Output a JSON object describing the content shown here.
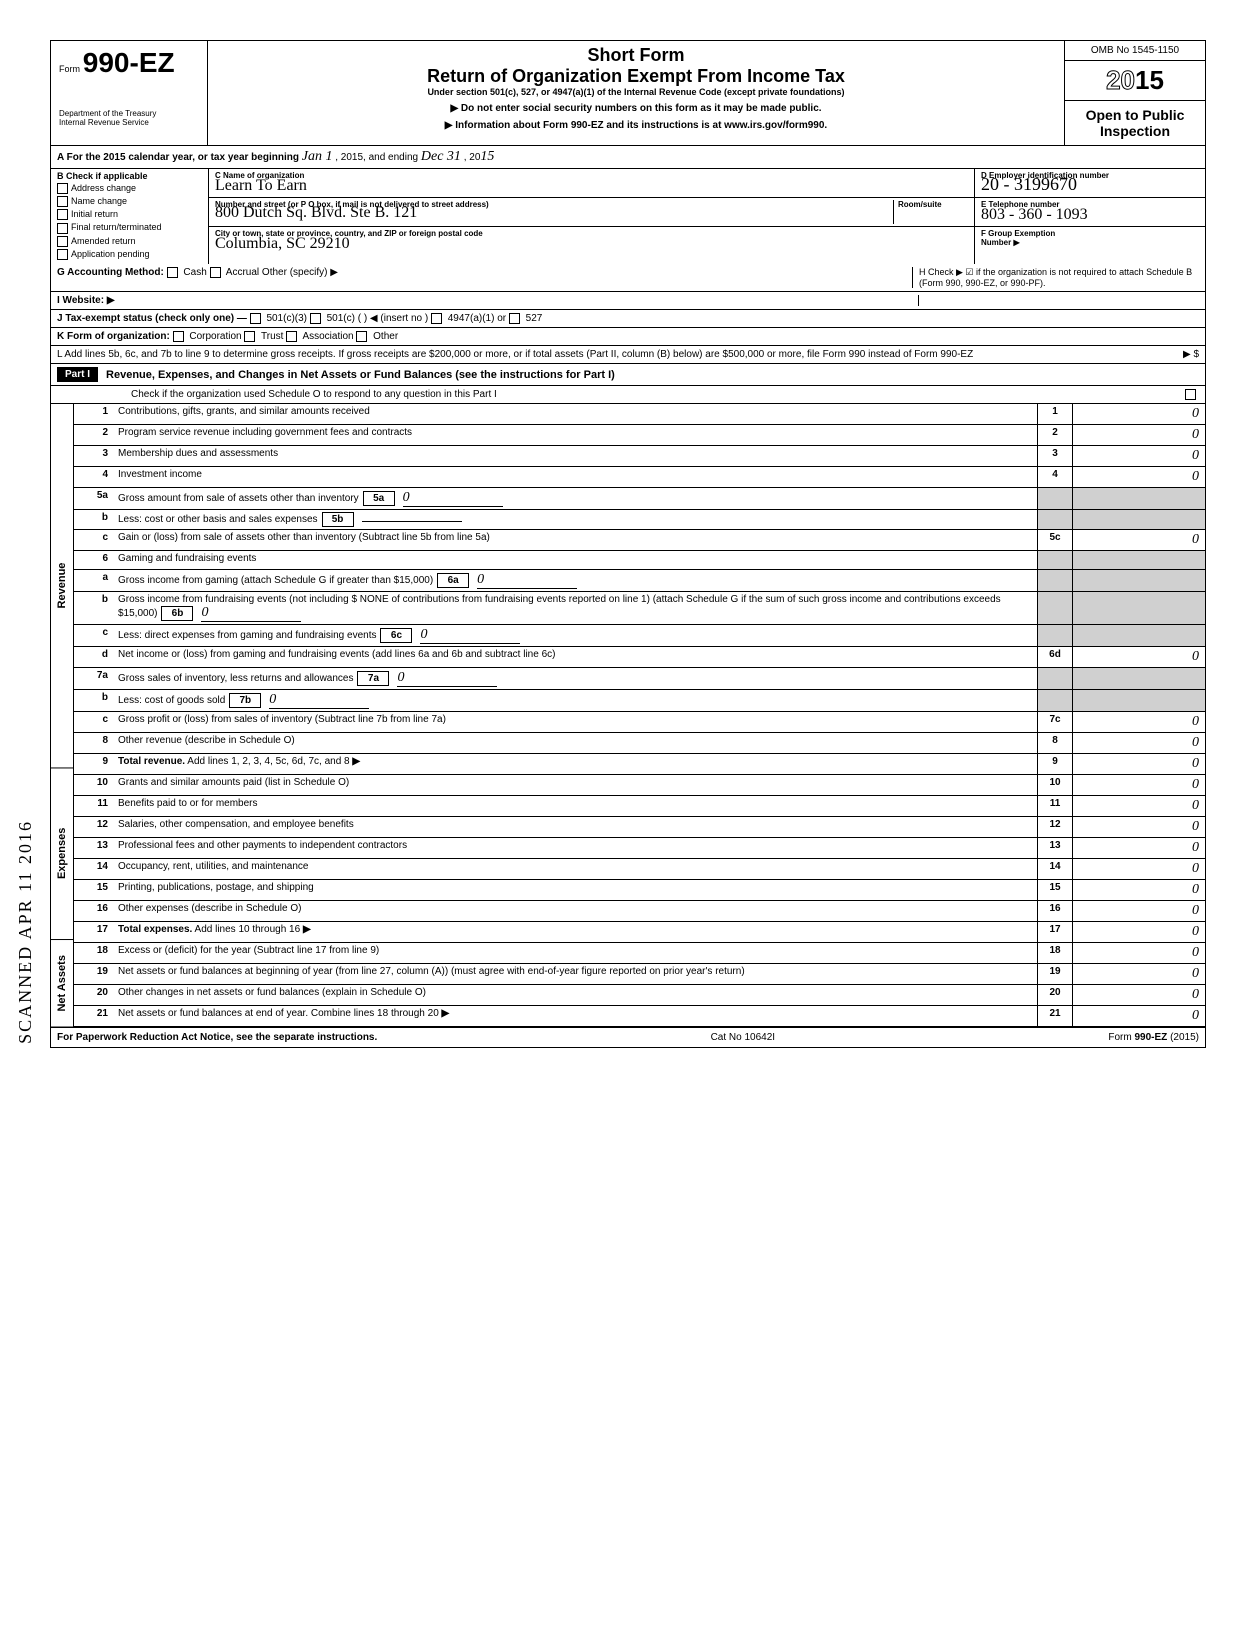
{
  "header": {
    "form_label": "Form",
    "form_number": "990-EZ",
    "short_form": "Short Form",
    "main_title": "Return of Organization Exempt From Income Tax",
    "subtitle": "Under section 501(c), 527, or 4947(a)(1) of the Internal Revenue Code (except private foundations)",
    "instr1": "▶ Do not enter social security numbers on this form as it may be made public.",
    "instr2": "▶ Information about Form 990-EZ and its instructions is at www.irs.gov/form990.",
    "omb": "OMB No 1545-1150",
    "year_prefix": "20",
    "year_bold": "15",
    "open_public": "Open to Public Inspection",
    "dept": "Department of the Treasury",
    "irs": "Internal Revenue Service"
  },
  "section_a": {
    "text_start": "A For the 2015 calendar year, or tax year beginning",
    "begin_hw": "Jan 1",
    "mid": ", 2015, and ending",
    "end_hw": "Dec 31",
    "end2": ", 20",
    "end_year_hw": "15"
  },
  "section_b": {
    "label": "B Check if applicable",
    "items": [
      "Address change",
      "Name change",
      "Initial return",
      "Final return/terminated",
      "Amended return",
      "Application pending"
    ]
  },
  "section_c": {
    "name_label": "C Name of organization",
    "name_hw": "Learn To Earn",
    "addr_label": "Number and street (or P O box, if mail is not delivered to street address)",
    "room_label": "Room/suite",
    "addr_hw": "800 Dutch Sq. Blvd. Ste B. 121",
    "city_label": "City or town, state or province, country, and ZIP or foreign postal code",
    "city_hw": "Columbia, SC 29210"
  },
  "section_d": {
    "label": "D Employer identification number",
    "ein_hw": "20 - 3199670"
  },
  "section_e": {
    "label": "E Telephone number",
    "phone_hw": "803 - 360 - 1093"
  },
  "section_f": {
    "label": "F Group Exemption",
    "label2": "Number ▶"
  },
  "section_g": {
    "label": "G Accounting Method:",
    "cash": "Cash",
    "accrual": "Accrual",
    "other": "Other (specify) ▶"
  },
  "section_h": {
    "text": "H Check ▶ ☑ if the organization is not required to attach Schedule B (Form 990, 990-EZ, or 990-PF)."
  },
  "section_i": {
    "label": "I Website: ▶"
  },
  "section_j": {
    "label": "J Tax-exempt status (check only one) —",
    "opt1": "501(c)(3)",
    "opt2": "501(c) (",
    "insert": ") ◀ (insert no )",
    "opt3": "4947(a)(1) or",
    "opt4": "527"
  },
  "section_k": {
    "label": "K Form of organization:",
    "corp": "Corporation",
    "trust": "Trust",
    "assoc": "Association",
    "other": "Other"
  },
  "section_l": {
    "text": "L Add lines 5b, 6c, and 7b to line 9 to determine gross receipts. If gross receipts are $200,000 or more, or if total assets (Part II, column (B) below) are $500,000 or more, file Form 990 instead of Form 990-EZ",
    "arrow": "▶ $"
  },
  "part1": {
    "label": "Part I",
    "title": "Revenue, Expenses, and Changes in Net Assets or Fund Balances (see the instructions for Part I)",
    "check": "Check if the organization used Schedule O to respond to any question in this Part I"
  },
  "side_labels": {
    "revenue": "Revenue",
    "expenses": "Expenses",
    "netassets": "Net Assets"
  },
  "lines": [
    {
      "n": "1",
      "d": "Contributions, gifts, grants, and similar amounts received",
      "box": "1",
      "amt": "0"
    },
    {
      "n": "2",
      "d": "Program service revenue including government fees and contracts",
      "box": "2",
      "amt": "0"
    },
    {
      "n": "3",
      "d": "Membership dues and assessments",
      "box": "3",
      "amt": "0"
    },
    {
      "n": "4",
      "d": "Investment income",
      "box": "4",
      "amt": "0"
    },
    {
      "n": "5a",
      "d": "Gross amount from sale of assets other than inventory",
      "sub": "5a",
      "subamt": "0"
    },
    {
      "n": "b",
      "d": "Less: cost or other basis and sales expenses",
      "sub": "5b",
      "subamt": ""
    },
    {
      "n": "c",
      "d": "Gain or (loss) from sale of assets other than inventory (Subtract line 5b from line 5a)",
      "box": "5c",
      "amt": "0"
    },
    {
      "n": "6",
      "d": "Gaming and fundraising events"
    },
    {
      "n": "a",
      "d": "Gross income from gaming (attach Schedule G if greater than $15,000)",
      "sub": "6a",
      "subamt": "0"
    },
    {
      "n": "b",
      "d": "Gross income from fundraising events (not including $ NONE of contributions from fundraising events reported on line 1) (attach Schedule G if the sum of such gross income and contributions exceeds $15,000)",
      "sub": "6b",
      "subamt": "0"
    },
    {
      "n": "c",
      "d": "Less: direct expenses from gaming and fundraising events",
      "sub": "6c",
      "subamt": "0"
    },
    {
      "n": "d",
      "d": "Net income or (loss) from gaming and fundraising events (add lines 6a and 6b and subtract line 6c)",
      "box": "6d",
      "amt": "0"
    },
    {
      "n": "7a",
      "d": "Gross sales of inventory, less returns and allowances",
      "sub": "7a",
      "subamt": "0"
    },
    {
      "n": "b",
      "d": "Less: cost of goods sold",
      "sub": "7b",
      "subamt": "0"
    },
    {
      "n": "c",
      "d": "Gross profit or (loss) from sales of inventory (Subtract line 7b from line 7a)",
      "box": "7c",
      "amt": "0"
    },
    {
      "n": "8",
      "d": "Other revenue (describe in Schedule O)",
      "box": "8",
      "amt": "0"
    },
    {
      "n": "9",
      "d": "Total revenue. Add lines 1, 2, 3, 4, 5c, 6d, 7c, and 8",
      "box": "9",
      "amt": "0",
      "bold": true,
      "arrow": true
    },
    {
      "n": "10",
      "d": "Grants and similar amounts paid (list in Schedule O)",
      "box": "10",
      "amt": "0"
    },
    {
      "n": "11",
      "d": "Benefits paid to or for members",
      "box": "11",
      "amt": "0"
    },
    {
      "n": "12",
      "d": "Salaries, other compensation, and employee benefits",
      "box": "12",
      "amt": "0"
    },
    {
      "n": "13",
      "d": "Professional fees and other payments to independent contractors",
      "box": "13",
      "amt": "0"
    },
    {
      "n": "14",
      "d": "Occupancy, rent, utilities, and maintenance",
      "box": "14",
      "amt": "0"
    },
    {
      "n": "15",
      "d": "Printing, publications, postage, and shipping",
      "box": "15",
      "amt": "0"
    },
    {
      "n": "16",
      "d": "Other expenses (describe in Schedule O)",
      "box": "16",
      "amt": "0"
    },
    {
      "n": "17",
      "d": "Total expenses. Add lines 10 through 16",
      "box": "17",
      "amt": "0",
      "bold": true,
      "arrow": true
    },
    {
      "n": "18",
      "d": "Excess or (deficit) for the year (Subtract line 17 from line 9)",
      "box": "18",
      "amt": "0"
    },
    {
      "n": "19",
      "d": "Net assets or fund balances at beginning of year (from line 27, column (A)) (must agree with end-of-year figure reported on prior year's return)",
      "box": "19",
      "amt": "0"
    },
    {
      "n": "20",
      "d": "Other changes in net assets or fund balances (explain in Schedule O)",
      "box": "20",
      "amt": "0"
    },
    {
      "n": "21",
      "d": "Net assets or fund balances at end of year. Combine lines 18 through 20",
      "box": "21",
      "amt": "0",
      "arrow": true
    }
  ],
  "footer": {
    "left": "For Paperwork Reduction Act Notice, see the separate instructions.",
    "mid": "Cat No 10642I",
    "right": "Form 990-EZ (2015)"
  },
  "scanned": "SCANNED APR 11 2016",
  "hw_amt": "0"
}
